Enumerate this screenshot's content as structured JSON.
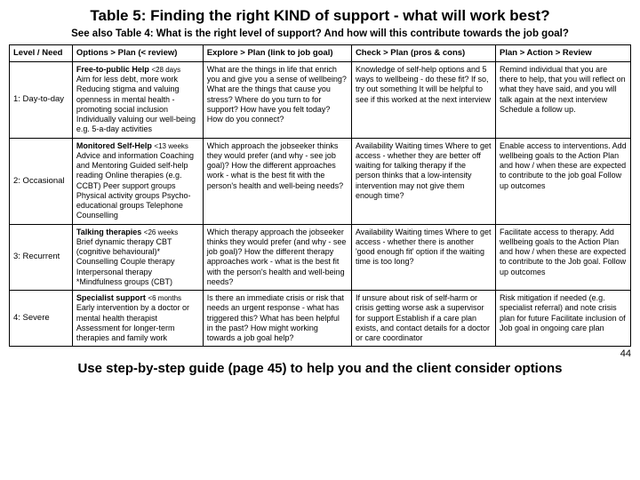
{
  "title": "Table 5: Finding the right KIND of support - what will work best?",
  "subtitle": "See also Table 4: What is the right level of support? And how will this contribute towards the job goal?",
  "headers": {
    "c0": "Level / Need",
    "c1": "Options > Plan (< review)",
    "c2": "Explore > Plan (link to job goal)",
    "c3": "Check > Plan (pros & cons)",
    "c4": "Plan > Action > Review"
  },
  "rows": {
    "r1": {
      "label": "1: Day-to-day",
      "c1_lead": "Free-to-public Help",
      "c1_small": "<28 days",
      "c1_body": "Aim for less debt, more work Reducing stigma and valuing openness in mental health - promoting social inclusion Individually valuing our well-being e.g. 5-a-day activities",
      "c2": "What are the things in life that enrich you and give you a sense of wellbeing? What are the things that cause you stress? Where do you turn to for support? How have you felt today? How do you connect?",
      "c3": "Knowledge of self-help options and 5 ways to wellbeing - do these fit? If so, try out something It will be helpful to see if this worked at the next interview",
      "c4": "Remind individual that you are there to help, that you will reflect on what they have said, and you will talk again at the next interview Schedule a follow up."
    },
    "r2": {
      "label": "2: Occasional",
      "c1_lead": "Monitored Self-Help",
      "c1_small": "<13 weeks",
      "c1_body": "Advice and information Coaching and Mentoring Guided self-help reading Online therapies (e.g. CCBT) Peer support groups Physical activity groups Psycho-educational groups Telephone Counselling",
      "c2": "Which approach the jobseeker thinks they would prefer (and why - see job goal)? How the different approaches work - what is the best fit with the person's health and well-being needs?",
      "c3": "Availability Waiting times Where to get access - whether they are better off waiting for talking therapy if the person thinks that a low-intensity intervention may not give them enough time?",
      "c4": "Enable access to interventions. Add wellbeing goals to the Action Plan and how / when these are expected to contribute to the job goal Follow up outcomes"
    },
    "r3": {
      "label": "3: Recurrent",
      "c1_lead": "Talking therapies",
      "c1_small": "<26 weeks",
      "c1_body": "Brief dynamic therapy CBT (cognitive behavioural)* Counselling Couple therapy Interpersonal therapy *Mindfulness groups (CBT)",
      "c2": "Which therapy approach the jobseeker thinks they would prefer (and why - see job goal)? How the different therapy approaches work - what is the best fit with the person's health and well-being needs?",
      "c3": "Availability Waiting times Where to get access - whether there is another 'good enough fit' option if the waiting time is too long?",
      "c4": "Facilitate access to therapy. Add wellbeing goals to the Action  Plan and how / when these are expected to contribute to the Job goal. Follow up outcomes"
    },
    "r4": {
      "label": "4: Severe",
      "c1_lead": "Specialist support",
      "c1_small": "<6 months",
      "c1_body": "Early intervention by a doctor or mental health therapist Assessment for longer-term therapies and family work",
      "c2": "Is there an immediate crisis or risk that needs an urgent response - what has triggered this? What has been helpful in the past? How might working towards a job goal help?",
      "c3": "If unsure about risk of self-harm or crisis getting worse ask a supervisor for support Establish if a care plan exists, and contact details for a doctor or care coordinator",
      "c4": "Risk mitigation if needed (e.g. specialist referral) and note crisis plan for future Facilitate inclusion of Job goal in ongoing care plan"
    }
  },
  "pagenum": "44",
  "footer": "Use step-by-step guide (page 45) to help you and the client consider options"
}
